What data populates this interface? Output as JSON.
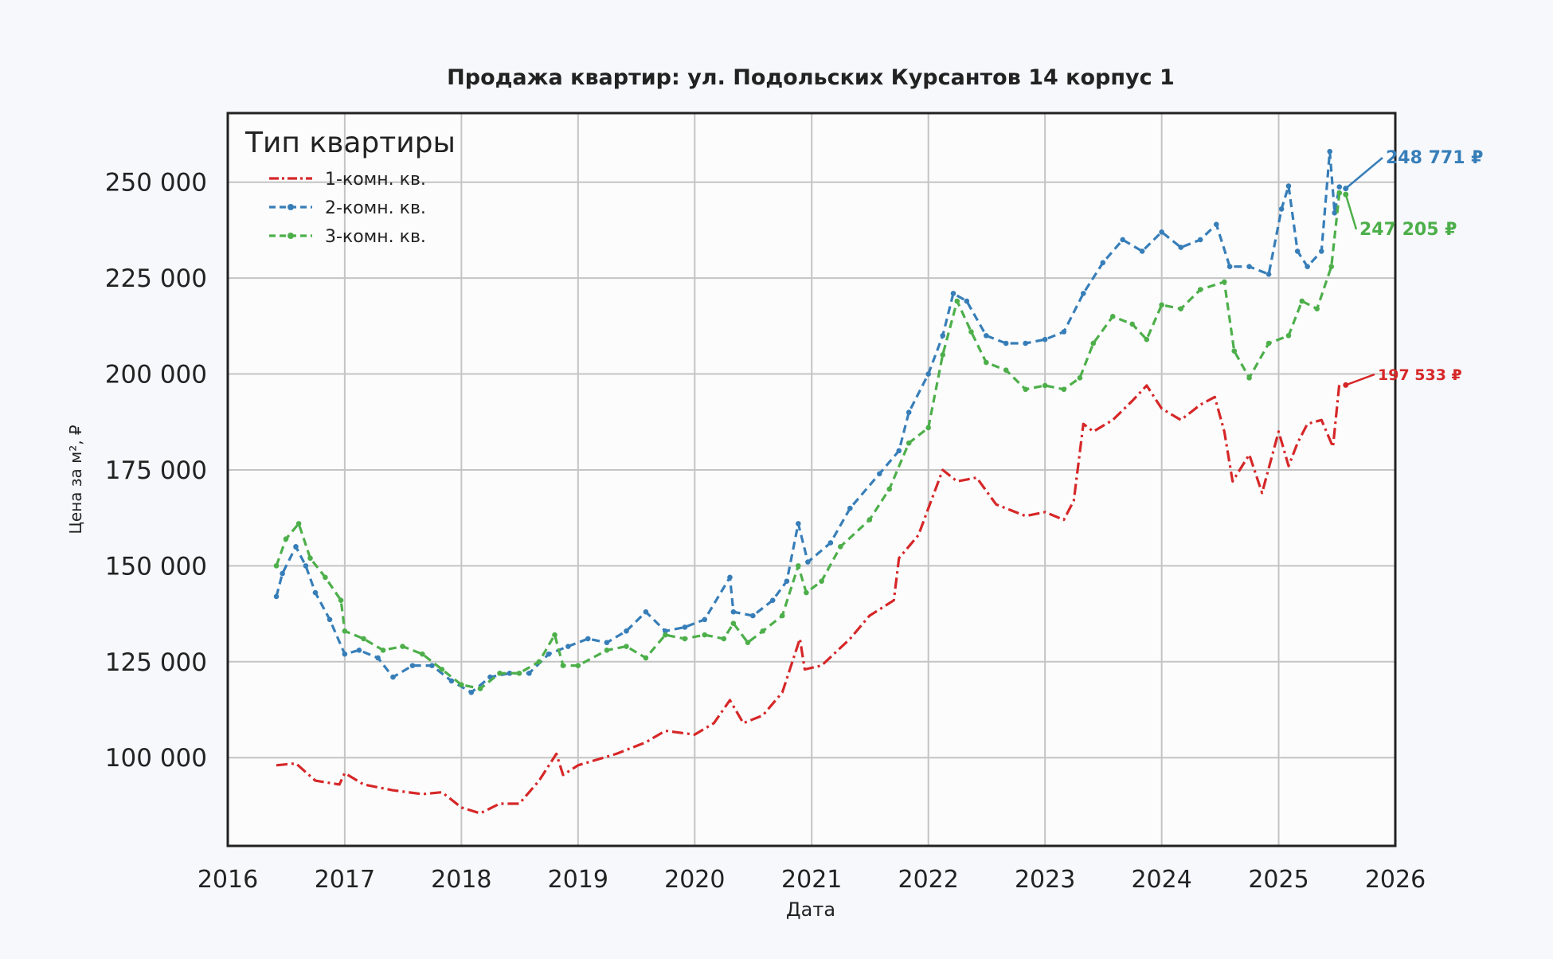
{
  "chart_data": {
    "type": "line",
    "title": "Продажа квартир: ул. Подольских Курсантов 14 корпус 1",
    "xlabel": "Дата",
    "ylabel": "Цена за м², ₽",
    "xlim": [
      "2016-01-01",
      "2026-01-01"
    ],
    "ylim": [
      77000,
      268000
    ],
    "x_ticks": [
      "2016",
      "2017",
      "2018",
      "2019",
      "2020",
      "2021",
      "2022",
      "2023",
      "2024",
      "2025",
      "2026"
    ],
    "y_ticks": [
      100000,
      125000,
      150000,
      175000,
      200000,
      225000,
      250000
    ],
    "y_tick_labels": [
      "100 000",
      "125 000",
      "150 000",
      "175 000",
      "200 000",
      "225 000",
      "250 000"
    ],
    "grid": true,
    "legend": {
      "title": "Тип квартиры",
      "placement": "top-left"
    },
    "series": [
      {
        "name": "1-комн. кв.",
        "color": "#d62728",
        "style": "dashdot",
        "last_label": "197 533 ₽",
        "points": [
          [
            "2016-06-01",
            98000
          ],
          [
            "2016-08-01",
            98500
          ],
          [
            "2016-10-01",
            94000
          ],
          [
            "2016-12-15",
            93000
          ],
          [
            "2017-01-01",
            96000
          ],
          [
            "2017-03-01",
            93000
          ],
          [
            "2017-06-01",
            91500
          ],
          [
            "2017-09-01",
            90500
          ],
          [
            "2017-11-01",
            91000
          ],
          [
            "2018-01-01",
            87000
          ],
          [
            "2018-03-01",
            85500
          ],
          [
            "2018-05-01",
            88000
          ],
          [
            "2018-07-01",
            88000
          ],
          [
            "2018-09-01",
            94000
          ],
          [
            "2018-10-25",
            101000
          ],
          [
            "2018-11-15",
            95500
          ],
          [
            "2019-01-01",
            98000
          ],
          [
            "2019-05-01",
            101000
          ],
          [
            "2019-08-01",
            104000
          ],
          [
            "2019-10-01",
            107000
          ],
          [
            "2020-01-01",
            106000
          ],
          [
            "2020-03-01",
            109000
          ],
          [
            "2020-04-20",
            115000
          ],
          [
            "2020-06-01",
            109000
          ],
          [
            "2020-08-01",
            111000
          ],
          [
            "2020-10-01",
            117000
          ],
          [
            "2020-11-25",
            131000
          ],
          [
            "2020-12-10",
            123000
          ],
          [
            "2021-02-01",
            124000
          ],
          [
            "2021-05-01",
            131000
          ],
          [
            "2021-07-01",
            137000
          ],
          [
            "2021-09-15",
            141000
          ],
          [
            "2021-10-01",
            152000
          ],
          [
            "2021-12-01",
            158000
          ],
          [
            "2022-01-01",
            165000
          ],
          [
            "2022-02-15",
            175000
          ],
          [
            "2022-04-01",
            172000
          ],
          [
            "2022-06-01",
            173000
          ],
          [
            "2022-08-01",
            166000
          ],
          [
            "2022-11-01",
            163000
          ],
          [
            "2023-01-01",
            164000
          ],
          [
            "2023-03-01",
            162000
          ],
          [
            "2023-04-01",
            167000
          ],
          [
            "2023-05-01",
            187000
          ],
          [
            "2023-06-01",
            185000
          ],
          [
            "2023-08-01",
            188000
          ],
          [
            "2023-10-01",
            193000
          ],
          [
            "2023-11-15",
            197000
          ],
          [
            "2024-01-01",
            191000
          ],
          [
            "2024-03-01",
            188000
          ],
          [
            "2024-05-01",
            192000
          ],
          [
            "2024-06-15",
            194000
          ],
          [
            "2024-07-15",
            185000
          ],
          [
            "2024-08-10",
            172000
          ],
          [
            "2024-10-01",
            179000
          ],
          [
            "2024-11-10",
            169000
          ],
          [
            "2025-01-01",
            185000
          ],
          [
            "2025-02-01",
            176000
          ],
          [
            "2025-03-01",
            182000
          ],
          [
            "2025-04-01",
            187000
          ],
          [
            "2025-05-15",
            188000
          ],
          [
            "2025-06-20",
            181000
          ],
          [
            "2025-07-10",
            197533
          ]
        ]
      },
      {
        "name": "2-комн. кв.",
        "color": "#377eb8",
        "style": "dashed",
        "last_label": "248 771 ₽",
        "points": [
          [
            "2016-06-01",
            142000
          ],
          [
            "2016-06-20",
            148000
          ],
          [
            "2016-08-01",
            155000
          ],
          [
            "2016-09-01",
            150000
          ],
          [
            "2016-10-01",
            143000
          ],
          [
            "2016-11-15",
            136000
          ],
          [
            "2017-01-01",
            127000
          ],
          [
            "2017-02-15",
            128000
          ],
          [
            "2017-04-15",
            126000
          ],
          [
            "2017-06-01",
            121000
          ],
          [
            "2017-08-01",
            124000
          ],
          [
            "2017-10-01",
            124000
          ],
          [
            "2017-12-01",
            120000
          ],
          [
            "2018-02-01",
            117000
          ],
          [
            "2018-04-01",
            121000
          ],
          [
            "2018-06-01",
            122000
          ],
          [
            "2018-08-01",
            122000
          ],
          [
            "2018-10-01",
            127000
          ],
          [
            "2018-12-01",
            129000
          ],
          [
            "2019-02-01",
            131000
          ],
          [
            "2019-04-01",
            130000
          ],
          [
            "2019-06-01",
            133000
          ],
          [
            "2019-08-01",
            138000
          ],
          [
            "2019-10-01",
            133000
          ],
          [
            "2019-12-01",
            134000
          ],
          [
            "2020-02-01",
            136000
          ],
          [
            "2020-04-20",
            147000
          ],
          [
            "2020-05-01",
            138000
          ],
          [
            "2020-07-01",
            137000
          ],
          [
            "2020-09-01",
            141000
          ],
          [
            "2020-10-15",
            146000
          ],
          [
            "2020-11-20",
            161000
          ],
          [
            "2020-12-20",
            151000
          ],
          [
            "2021-03-01",
            156000
          ],
          [
            "2021-05-01",
            165000
          ],
          [
            "2021-08-01",
            174000
          ],
          [
            "2021-10-01",
            180000
          ],
          [
            "2021-11-01",
            190000
          ],
          [
            "2022-01-01",
            200000
          ],
          [
            "2022-02-15",
            210000
          ],
          [
            "2022-03-20",
            221000
          ],
          [
            "2022-05-01",
            219000
          ],
          [
            "2022-07-01",
            210000
          ],
          [
            "2022-09-01",
            208000
          ],
          [
            "2022-11-01",
            208000
          ],
          [
            "2023-01-01",
            209000
          ],
          [
            "2023-03-01",
            211000
          ],
          [
            "2023-05-01",
            221000
          ],
          [
            "2023-07-01",
            229000
          ],
          [
            "2023-09-01",
            235000
          ],
          [
            "2023-11-01",
            232000
          ],
          [
            "2024-01-01",
            237000
          ],
          [
            "2024-03-01",
            233000
          ],
          [
            "2024-05-01",
            235000
          ],
          [
            "2024-06-20",
            239000
          ],
          [
            "2024-08-01",
            228000
          ],
          [
            "2024-10-01",
            228000
          ],
          [
            "2024-12-01",
            226000
          ],
          [
            "2025-01-10",
            243000
          ],
          [
            "2025-02-01",
            249000
          ],
          [
            "2025-03-01",
            232000
          ],
          [
            "2025-04-01",
            228000
          ],
          [
            "2025-05-15",
            232000
          ],
          [
            "2025-06-10",
            258000
          ],
          [
            "2025-06-25",
            242000
          ],
          [
            "2025-07-10",
            248771
          ]
        ]
      },
      {
        "name": "3-комн. кв.",
        "color": "#4daf4a",
        "style": "dashed",
        "last_label": "247 205 ₽",
        "points": [
          [
            "2016-06-01",
            150000
          ],
          [
            "2016-07-01",
            157000
          ],
          [
            "2016-08-10",
            161000
          ],
          [
            "2016-09-15",
            152000
          ],
          [
            "2016-11-01",
            147000
          ],
          [
            "2016-12-20",
            141000
          ],
          [
            "2017-01-01",
            133000
          ],
          [
            "2017-03-01",
            131000
          ],
          [
            "2017-05-01",
            128000
          ],
          [
            "2017-07-01",
            129000
          ],
          [
            "2017-09-01",
            127000
          ],
          [
            "2017-11-01",
            123000
          ],
          [
            "2018-01-01",
            119000
          ],
          [
            "2018-03-01",
            118000
          ],
          [
            "2018-05-01",
            122000
          ],
          [
            "2018-07-01",
            122000
          ],
          [
            "2018-09-01",
            125000
          ],
          [
            "2018-10-20",
            132000
          ],
          [
            "2018-11-15",
            124000
          ],
          [
            "2019-01-01",
            124000
          ],
          [
            "2019-04-01",
            128000
          ],
          [
            "2019-06-01",
            129000
          ],
          [
            "2019-08-01",
            126000
          ],
          [
            "2019-10-01",
            132000
          ],
          [
            "2019-12-01",
            131000
          ],
          [
            "2020-02-01",
            132000
          ],
          [
            "2020-04-01",
            131000
          ],
          [
            "2020-05-01",
            135000
          ],
          [
            "2020-06-15",
            130000
          ],
          [
            "2020-08-01",
            133000
          ],
          [
            "2020-10-01",
            137000
          ],
          [
            "2020-11-20",
            150000
          ],
          [
            "2020-12-15",
            143000
          ],
          [
            "2021-02-01",
            146000
          ],
          [
            "2021-04-01",
            155000
          ],
          [
            "2021-07-01",
            162000
          ],
          [
            "2021-09-01",
            170000
          ],
          [
            "2021-11-01",
            182000
          ],
          [
            "2022-01-01",
            186000
          ],
          [
            "2022-02-15",
            205000
          ],
          [
            "2022-04-01",
            219000
          ],
          [
            "2022-05-15",
            211000
          ],
          [
            "2022-07-01",
            203000
          ],
          [
            "2022-09-01",
            201000
          ],
          [
            "2022-11-01",
            196000
          ],
          [
            "2023-01-01",
            197000
          ],
          [
            "2023-03-01",
            196000
          ],
          [
            "2023-04-20",
            199000
          ],
          [
            "2023-06-01",
            208000
          ],
          [
            "2023-08-01",
            215000
          ],
          [
            "2023-10-01",
            213000
          ],
          [
            "2023-11-15",
            209000
          ],
          [
            "2024-01-01",
            218000
          ],
          [
            "2024-03-01",
            217000
          ],
          [
            "2024-05-01",
            222000
          ],
          [
            "2024-07-15",
            224000
          ],
          [
            "2024-08-15",
            206000
          ],
          [
            "2024-10-01",
            199000
          ],
          [
            "2024-12-01",
            208000
          ],
          [
            "2025-02-01",
            210000
          ],
          [
            "2025-03-15",
            219000
          ],
          [
            "2025-05-01",
            217000
          ],
          [
            "2025-06-15",
            228000
          ],
          [
            "2025-07-10",
            247205
          ]
        ]
      }
    ]
  }
}
